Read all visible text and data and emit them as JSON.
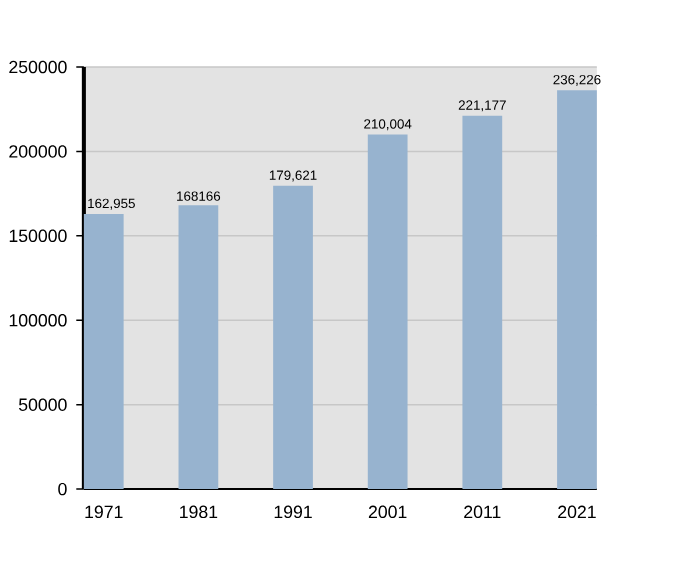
{
  "chart_data": {
    "type": "bar",
    "categories": [
      "1971",
      "1981",
      "1991",
      "2001",
      "2011",
      "2021"
    ],
    "values": [
      162955,
      168166,
      179621,
      210004,
      221177,
      236226
    ],
    "value_labels": [
      "162,955",
      "168166",
      "179,621",
      "210,004",
      "221,177",
      "236,226"
    ],
    "color": "#97b3cf",
    "ylim": [
      0,
      250000
    ],
    "yticks": [
      0,
      50000,
      100000,
      150000,
      200000,
      250000
    ],
    "grid": "y"
  }
}
